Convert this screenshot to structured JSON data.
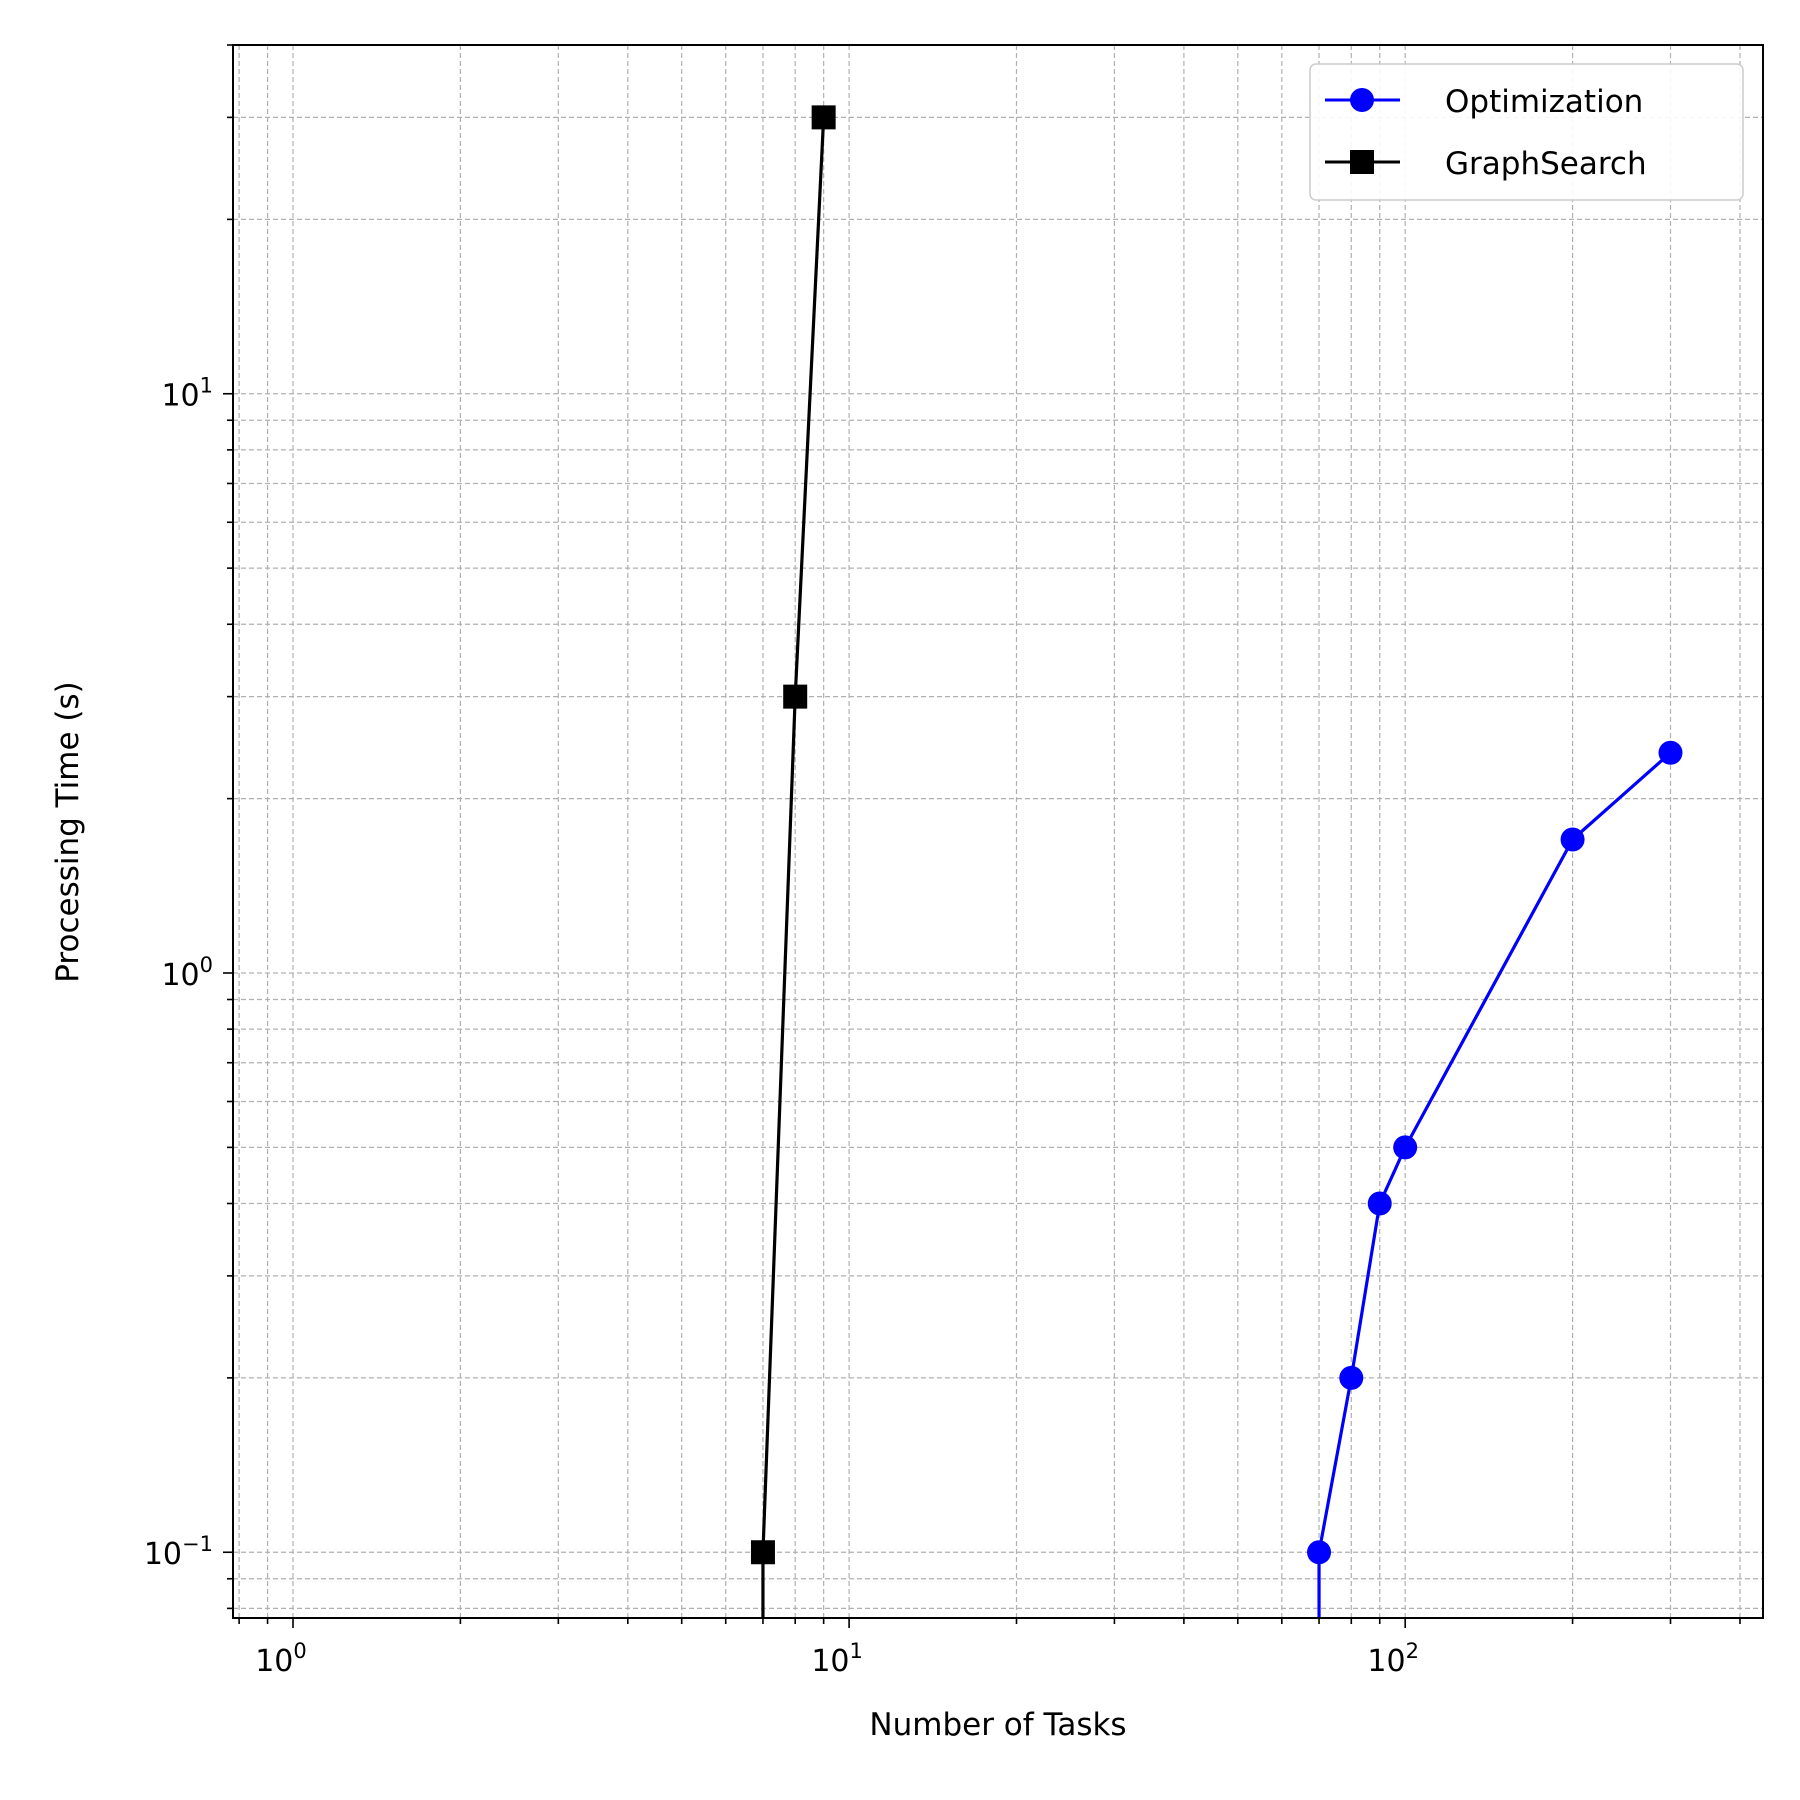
{
  "chart_data": {
    "type": "line",
    "title": "",
    "xlabel": "Number of Tasks",
    "ylabel": "Processing Time (s)",
    "xscale": "log",
    "yscale": "log",
    "xlim": [
      0.78,
      440
    ],
    "ylim": [
      0.077,
      40
    ],
    "grid": true,
    "grid_which": "both",
    "legend_position": "upper right",
    "x_ticks": [
      {
        "base": "10",
        "exp": "0",
        "value": 1
      },
      {
        "base": "10",
        "exp": "1",
        "value": 10
      },
      {
        "base": "10",
        "exp": "2",
        "value": 100
      }
    ],
    "y_ticks": [
      {
        "base": "10",
        "exp": "−1",
        "value": 0.1
      },
      {
        "base": "10",
        "exp": "0",
        "value": 1
      },
      {
        "base": "10",
        "exp": "1",
        "value": 10
      }
    ],
    "series": [
      {
        "name": "Optimization",
        "color": "#0000ff",
        "marker": "circle",
        "x": [
          70,
          80,
          90,
          100,
          200,
          300
        ],
        "y": [
          0.1,
          0.2,
          0.4,
          0.5,
          1.7,
          2.4
        ],
        "extends_below_axis": true
      },
      {
        "name": "GraphSearch",
        "color": "#000000",
        "marker": "square",
        "x": [
          7,
          8,
          9
        ],
        "y": [
          0.1,
          3.0,
          30.0
        ],
        "extends_below_axis": true
      }
    ]
  }
}
